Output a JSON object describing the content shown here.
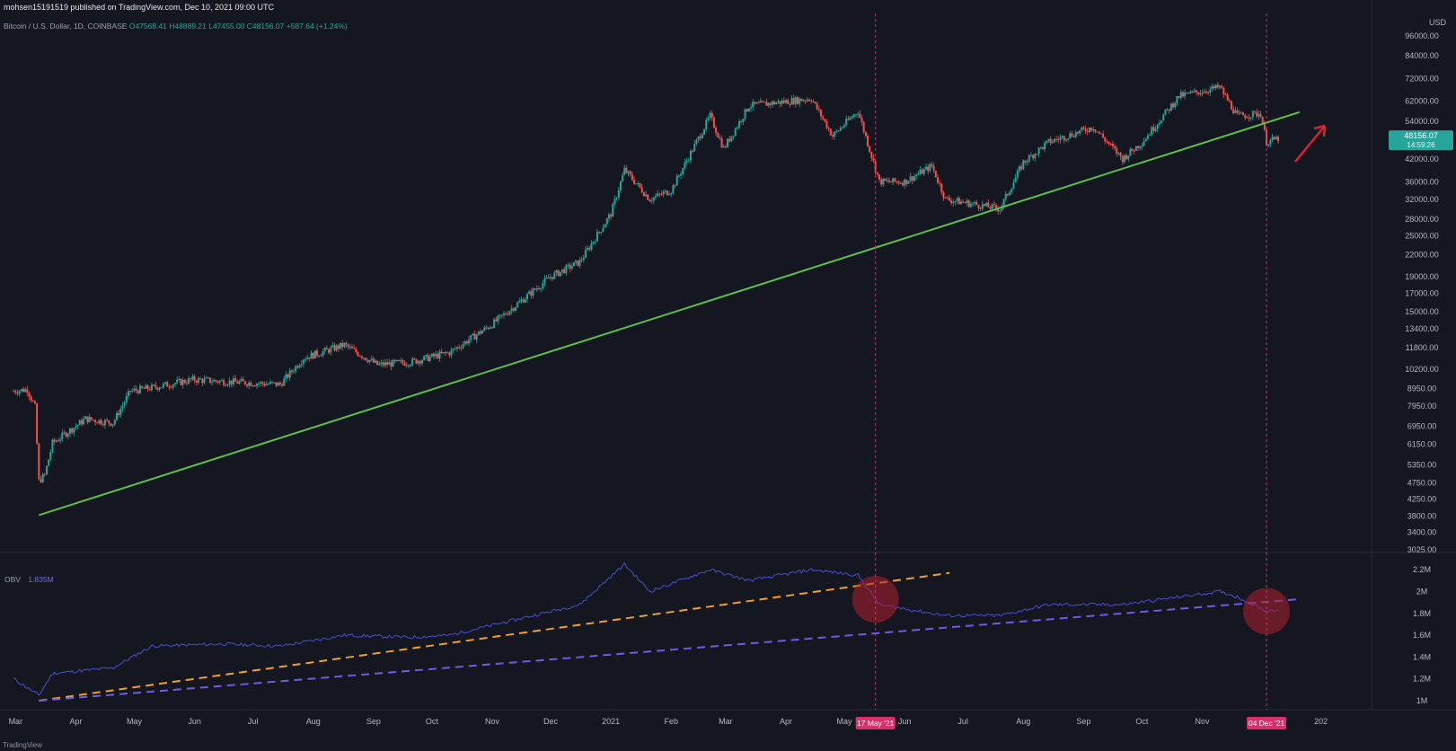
{
  "header": {
    "publisher": "mohsen15191519 published on TradingView.com, Dec 10, 2021 09:00 UTC",
    "symbol": "Bitcoin / U.S. Dollar, 1D, COINBASE",
    "ohlc": "O47568.41 H48889.21 L47455.00 C48156.07 +587.64 (+1.24%)"
  },
  "price_badge": {
    "value": "48156.07",
    "countdown": "14:59:26"
  },
  "obv": {
    "name": "OBV",
    "value": "1.835M"
  },
  "markers": {
    "left": "17 May '21",
    "right": "04 Dec '21"
  },
  "watermark": "TradingView",
  "chart_data": {
    "type": "candlestick",
    "price_axis": {
      "scale": "log",
      "currency": "USD",
      "ticks": [
        96000,
        84000,
        72000,
        62000,
        54000,
        48000,
        42000,
        36000,
        32000,
        28000,
        25000,
        22000,
        19000,
        17000,
        15000,
        13400,
        11800,
        10200,
        8950,
        7950,
        6950,
        6150,
        5350,
        4750,
        4250,
        3800,
        3400,
        3025
      ],
      "tick_labels": [
        "96000.00",
        "84000.00",
        "72000.00",
        "62000.00",
        "54000.00",
        "48000.00",
        "42000.00",
        "36000.00",
        "32000.00",
        "28000.00",
        "25000.00",
        "22000.00",
        "19000.00",
        "17000.00",
        "15000.00",
        "13400.00",
        "11800.00",
        "10200.00",
        "8950.00",
        "7950.00",
        "6950.00",
        "6150.00",
        "5350.00",
        "4750.00",
        "4250.00",
        "3800.00",
        "3400.00",
        "3025.00"
      ]
    },
    "obv_axis": {
      "ticks": [
        1.0,
        1.2,
        1.4,
        1.6,
        1.8,
        2.0,
        2.2
      ],
      "tick_labels": [
        "1M",
        "1.2M",
        "1.4M",
        "1.6M",
        "1.8M",
        "2M",
        "2.2M"
      ]
    },
    "time_axis": {
      "labels": [
        "Mar",
        "Apr",
        "May",
        "Jun",
        "Jul",
        "Aug",
        "Sep",
        "Oct",
        "Nov",
        "Dec",
        "2021",
        "Feb",
        "Mar",
        "Apr",
        "May",
        "Jun",
        "Jul",
        "Aug",
        "Sep",
        "Oct",
        "Nov",
        "Dec",
        "202"
      ],
      "dates": [
        "2020-03-01",
        "2020-04-01",
        "2020-05-01",
        "2020-06-01",
        "2020-07-01",
        "2020-08-01",
        "2020-09-01",
        "2020-10-01",
        "2020-11-01",
        "2020-12-01",
        "2021-01-01",
        "2021-02-01",
        "2021-03-01",
        "2021-04-01",
        "2021-05-01",
        "2021-06-01",
        "2021-07-01",
        "2021-08-01",
        "2021-09-01",
        "2021-10-01",
        "2021-11-01",
        "2021-12-01",
        "2022-01-01"
      ]
    },
    "price_path": [
      [
        "2020-02-29",
        8800
      ],
      [
        "2020-03-07",
        8900
      ],
      [
        "2020-03-11",
        7900
      ],
      [
        "2020-03-13",
        4800
      ],
      [
        "2020-03-16",
        5000
      ],
      [
        "2020-03-20",
        6200
      ],
      [
        "2020-04-06",
        7300
      ],
      [
        "2020-04-20",
        7100
      ],
      [
        "2020-04-29",
        8800
      ],
      [
        "2020-05-10",
        9000
      ],
      [
        "2020-05-31",
        9500
      ],
      [
        "2020-06-15",
        9400
      ],
      [
        "2020-07-15",
        9200
      ],
      [
        "2020-07-27",
        11000
      ],
      [
        "2020-08-17",
        12000
      ],
      [
        "2020-09-03",
        10500
      ],
      [
        "2020-09-20",
        10700
      ],
      [
        "2020-10-10",
        11400
      ],
      [
        "2020-11-01",
        13800
      ],
      [
        "2020-11-15",
        16000
      ],
      [
        "2020-12-01",
        19000
      ],
      [
        "2020-12-16",
        21000
      ],
      [
        "2021-01-01",
        29000
      ],
      [
        "2021-01-08",
        39000
      ],
      [
        "2021-01-21",
        32000
      ],
      [
        "2021-02-01",
        34000
      ],
      [
        "2021-02-21",
        56000
      ],
      [
        "2021-02-28",
        45000
      ],
      [
        "2021-03-13",
        60000
      ],
      [
        "2021-04-14",
        63000
      ],
      [
        "2021-04-25",
        49000
      ],
      [
        "2021-05-08",
        58000
      ],
      [
        "2021-05-19",
        36000
      ],
      [
        "2021-06-01",
        36000
      ],
      [
        "2021-06-15",
        40000
      ],
      [
        "2021-06-22",
        32000
      ],
      [
        "2021-07-20",
        30000
      ],
      [
        "2021-08-01",
        41000
      ],
      [
        "2021-08-14",
        47000
      ],
      [
        "2021-09-06",
        52000
      ],
      [
        "2021-09-21",
        42000
      ],
      [
        "2021-10-01",
        47000
      ],
      [
        "2021-10-20",
        64000
      ],
      [
        "2021-11-10",
        68000
      ],
      [
        "2021-11-19",
        56000
      ],
      [
        "2021-12-01",
        57000
      ],
      [
        "2021-12-04",
        47000
      ],
      [
        "2021-12-10",
        48156
      ]
    ],
    "obv_path": [
      [
        "2020-02-29",
        1.2
      ],
      [
        "2020-03-13",
        1.05
      ],
      [
        "2020-03-20",
        1.25
      ],
      [
        "2020-04-20",
        1.3
      ],
      [
        "2020-05-10",
        1.5
      ],
      [
        "2020-06-15",
        1.52
      ],
      [
        "2020-07-15",
        1.5
      ],
      [
        "2020-08-17",
        1.6
      ],
      [
        "2020-09-20",
        1.58
      ],
      [
        "2020-10-10",
        1.6
      ],
      [
        "2020-11-15",
        1.75
      ],
      [
        "2020-12-16",
        1.88
      ],
      [
        "2021-01-08",
        2.25
      ],
      [
        "2021-01-21",
        2.0
      ],
      [
        "2021-02-21",
        2.2
      ],
      [
        "2021-03-13",
        2.1
      ],
      [
        "2021-04-14",
        2.2
      ],
      [
        "2021-05-08",
        2.15
      ],
      [
        "2021-05-19",
        1.88
      ],
      [
        "2021-06-22",
        1.78
      ],
      [
        "2021-07-20",
        1.78
      ],
      [
        "2021-08-14",
        1.88
      ],
      [
        "2021-09-21",
        1.88
      ],
      [
        "2021-10-20",
        1.95
      ],
      [
        "2021-11-10",
        2.0
      ],
      [
        "2021-11-19",
        1.95
      ],
      [
        "2021-12-04",
        1.82
      ],
      [
        "2021-12-10",
        1.84
      ]
    ],
    "trendlines": [
      {
        "pane": "price",
        "color": "#5fbf4a",
        "dashed": false,
        "from": [
          "2020-03-13",
          3820
        ],
        "to": [
          "2021-12-21",
          57500
        ]
      },
      {
        "pane": "obv",
        "color": "#f0a030",
        "dashed": true,
        "from": [
          "2020-03-13",
          1.0
        ],
        "to": [
          "2021-06-24",
          2.17
        ]
      },
      {
        "pane": "obv",
        "color": "#6f5be8",
        "dashed": true,
        "from": [
          "2020-03-13",
          1.0
        ],
        "to": [
          "2021-12-21",
          1.93
        ]
      }
    ],
    "vertical_markers": [
      "2021-05-17",
      "2021-12-04"
    ],
    "colors": {
      "up": "#26a69a",
      "down": "#ef5350",
      "obv": "#4a4fd0",
      "marker": "#d8306a",
      "highlight": "#b02030"
    }
  }
}
